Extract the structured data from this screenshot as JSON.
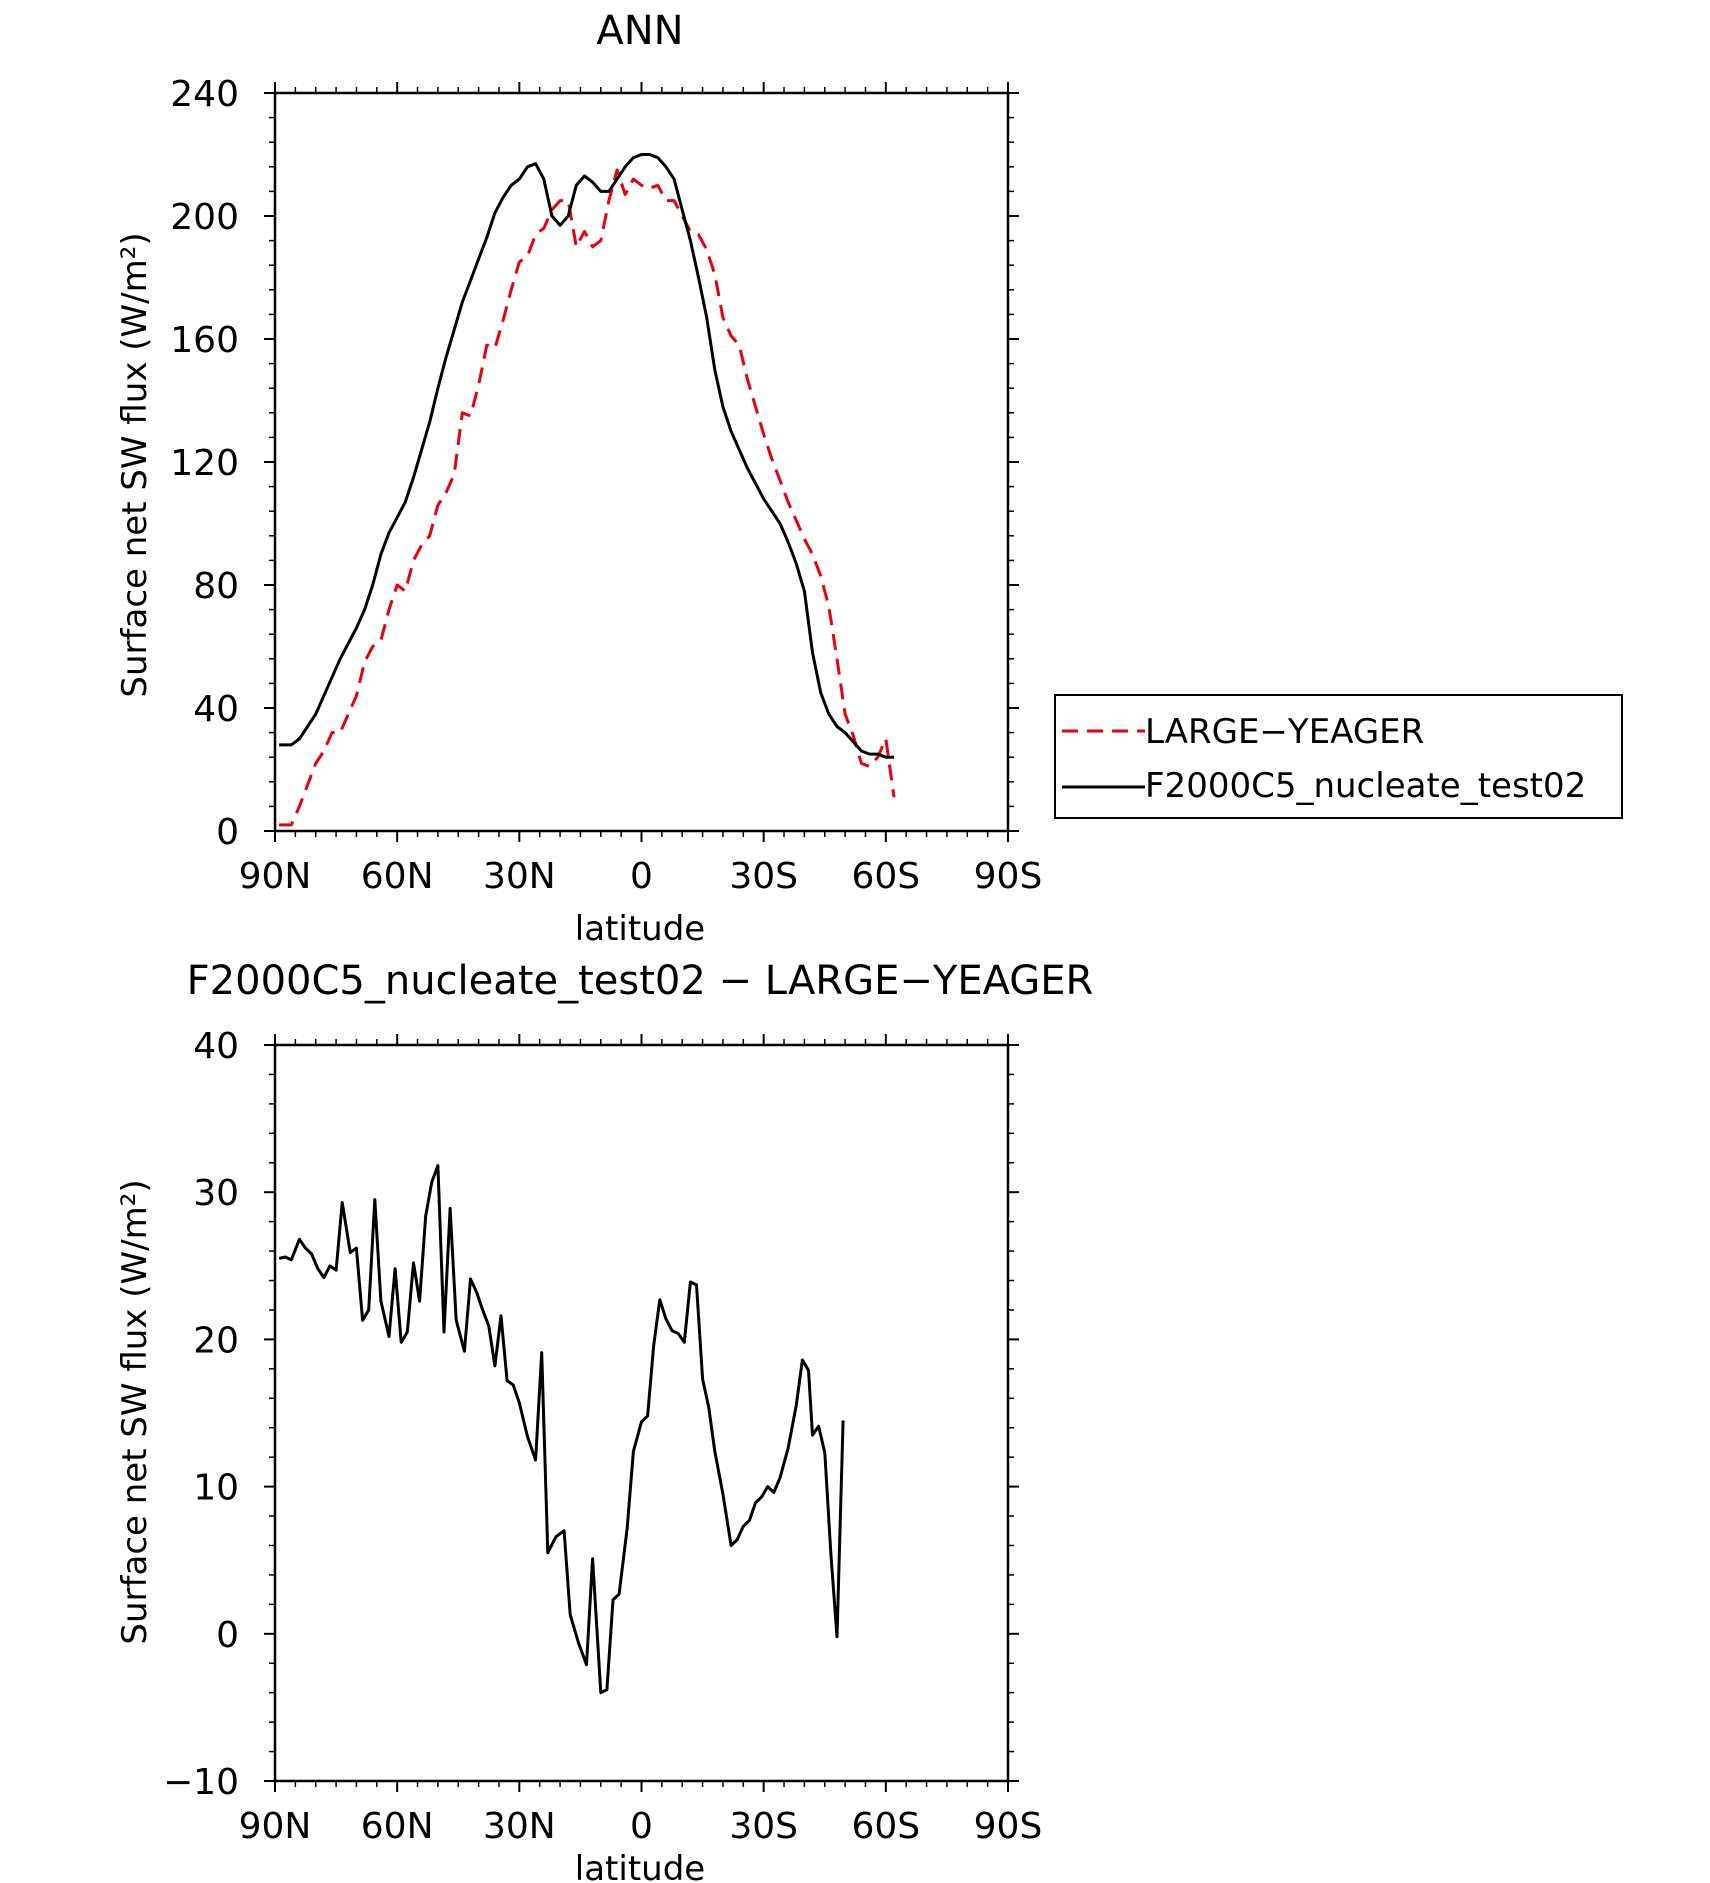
{
  "chart_data": [
    {
      "type": "line",
      "title": "ANN",
      "xlabel": "latitude",
      "ylabel": "Surface net SW flux (W/m²)",
      "xlim": [
        90,
        -90
      ],
      "ylim": [
        0,
        240
      ],
      "x_ticks": [
        90,
        60,
        30,
        0,
        -30,
        -60,
        -90
      ],
      "x_tick_labels": [
        "90N",
        "60N",
        "30N",
        "0",
        "30S",
        "60S",
        "90S"
      ],
      "y_ticks": [
        0,
        40,
        80,
        120,
        160,
        200,
        240
      ],
      "y_tick_labels": [
        "0",
        "40",
        "80",
        "120",
        "160",
        "200",
        "240"
      ],
      "grid": false,
      "legend_position": "right",
      "series": [
        {
          "name": "LARGE-YEAGER",
          "color": "#e8000b",
          "dash": "dashed",
          "points": [
            [
              89,
              2
            ],
            [
              86,
              2
            ],
            [
              84,
              8
            ],
            [
              82,
              15
            ],
            [
              80,
              22
            ],
            [
              78,
              26
            ],
            [
              76,
              32
            ],
            [
              74,
              32
            ],
            [
              72,
              38
            ],
            [
              70,
              44
            ],
            [
              68,
              55
            ],
            [
              66,
              60
            ],
            [
              64,
              62
            ],
            [
              62,
              72
            ],
            [
              60,
              80
            ],
            [
              58,
              78
            ],
            [
              56,
              88
            ],
            [
              54,
              93
            ],
            [
              52,
              96
            ],
            [
              50,
              106
            ],
            [
              48,
              110
            ],
            [
              46,
              116
            ],
            [
              44,
              136
            ],
            [
              42,
              135
            ],
            [
              40,
              145
            ],
            [
              38,
              158
            ],
            [
              36,
              157
            ],
            [
              34,
              166
            ],
            [
              32,
              176
            ],
            [
              30,
              185
            ],
            [
              28,
              187
            ],
            [
              26,
              194
            ],
            [
              24,
              196
            ],
            [
              22,
              202
            ],
            [
              20,
              205
            ],
            [
              18,
              205
            ],
            [
              16,
              190
            ],
            [
              14,
              195
            ],
            [
              12,
              190
            ],
            [
              10,
              192
            ],
            [
              8,
              205
            ],
            [
              6,
              215
            ],
            [
              4,
              207
            ],
            [
              2,
              212
            ],
            [
              0,
              210
            ],
            [
              -2,
              209
            ],
            [
              -4,
              210
            ],
            [
              -6,
              205
            ],
            [
              -8,
              205
            ],
            [
              -10,
              200
            ],
            [
              -12,
              195
            ],
            [
              -14,
              194
            ],
            [
              -16,
              189
            ],
            [
              -18,
              181
            ],
            [
              -20,
              167
            ],
            [
              -22,
              161
            ],
            [
              -24,
              158
            ],
            [
              -26,
              147
            ],
            [
              -28,
              138
            ],
            [
              -30,
              129
            ],
            [
              -32,
              121
            ],
            [
              -34,
              114
            ],
            [
              -36,
              107
            ],
            [
              -38,
              101
            ],
            [
              -40,
              95
            ],
            [
              -42,
              90
            ],
            [
              -44,
              83
            ],
            [
              -46,
              73
            ],
            [
              -48,
              56
            ],
            [
              -50,
              38
            ],
            [
              -52,
              31
            ],
            [
              -54,
              22
            ],
            [
              -56,
              21
            ],
            [
              -58,
              24
            ],
            [
              -60,
              30
            ],
            [
              -62,
              11
            ]
          ]
        },
        {
          "name": "F2000C5_nucleate_test02",
          "color": "#000000",
          "dash": "solid",
          "points": [
            [
              89,
              28
            ],
            [
              86,
              28
            ],
            [
              84,
              30
            ],
            [
              82,
              34
            ],
            [
              80,
              38
            ],
            [
              78,
              44
            ],
            [
              76,
              50
            ],
            [
              74,
              56
            ],
            [
              72,
              61
            ],
            [
              70,
              66
            ],
            [
              68,
              72
            ],
            [
              66,
              80
            ],
            [
              64,
              90
            ],
            [
              62,
              97
            ],
            [
              60,
              102
            ],
            [
              58,
              107
            ],
            [
              56,
              115
            ],
            [
              54,
              124
            ],
            [
              52,
              133
            ],
            [
              50,
              144
            ],
            [
              48,
              154
            ],
            [
              46,
              163
            ],
            [
              44,
              172
            ],
            [
              42,
              179
            ],
            [
              40,
              186
            ],
            [
              38,
              193
            ],
            [
              36,
              201
            ],
            [
              34,
              206
            ],
            [
              32,
              210
            ],
            [
              30,
              212
            ],
            [
              28,
              216
            ],
            [
              26,
              217
            ],
            [
              24,
              212
            ],
            [
              22,
              200
            ],
            [
              20,
              197
            ],
            [
              18,
              200
            ],
            [
              16,
              210
            ],
            [
              14,
              213
            ],
            [
              12,
              211
            ],
            [
              10,
              208
            ],
            [
              8,
              208
            ],
            [
              6,
              212
            ],
            [
              4,
              216
            ],
            [
              2,
              219
            ],
            [
              0,
              220
            ],
            [
              -2,
              220
            ],
            [
              -4,
              219
            ],
            [
              -6,
              216
            ],
            [
              -8,
              212
            ],
            [
              -10,
              202
            ],
            [
              -12,
              192
            ],
            [
              -14,
              180
            ],
            [
              -16,
              167
            ],
            [
              -18,
              150
            ],
            [
              -20,
              138
            ],
            [
              -22,
              130
            ],
            [
              -24,
              124
            ],
            [
              -26,
              118
            ],
            [
              -28,
              113
            ],
            [
              -30,
              108
            ],
            [
              -32,
              104
            ],
            [
              -34,
              100
            ],
            [
              -36,
              94
            ],
            [
              -38,
              87
            ],
            [
              -40,
              78
            ],
            [
              -42,
              58
            ],
            [
              -44,
              45
            ],
            [
              -46,
              38
            ],
            [
              -48,
              34
            ],
            [
              -50,
              32
            ],
            [
              -52,
              29
            ],
            [
              -54,
              26
            ],
            [
              -56,
              25
            ],
            [
              -58,
              25
            ],
            [
              -60,
              24
            ],
            [
              -62,
              24
            ]
          ]
        }
      ]
    },
    {
      "type": "line",
      "title": "F2000C5_nucleate_test02 − LARGE−YEAGER",
      "xlabel": "latitude",
      "ylabel": "Surface net SW flux (W/m²)",
      "xlim": [
        90,
        -90
      ],
      "ylim": [
        -10,
        40
      ],
      "x_ticks": [
        90,
        60,
        30,
        0,
        -30,
        -60,
        -90
      ],
      "x_tick_labels": [
        "90N",
        "60N",
        "30N",
        "0",
        "30S",
        "60S",
        "90S"
      ],
      "y_ticks": [
        -10,
        0,
        10,
        20,
        30,
        40
      ],
      "y_tick_labels": [
        "−10",
        "0",
        "10",
        "20",
        "30",
        "40"
      ],
      "grid": false,
      "series": [
        {
          "color": "#000000",
          "dash": "solid",
          "points": [
            [
              89,
              25.5
            ],
            [
              87.5,
              25.6
            ],
            [
              86,
              25.4
            ],
            [
              84,
              26.8
            ],
            [
              82.5,
              26.2
            ],
            [
              81,
              25.8
            ],
            [
              79.5,
              24.8
            ],
            [
              78,
              24.2
            ],
            [
              76.5,
              25.0
            ],
            [
              75,
              24.7
            ],
            [
              73.5,
              29.3
            ],
            [
              71.5,
              25.9
            ],
            [
              70,
              26.2
            ],
            [
              68.5,
              21.3
            ],
            [
              67,
              22.0
            ],
            [
              65.5,
              29.5
            ],
            [
              64,
              22.6
            ],
            [
              62,
              20.2
            ],
            [
              60.5,
              24.8
            ],
            [
              59,
              19.8
            ],
            [
              57.5,
              20.5
            ],
            [
              56,
              25.2
            ],
            [
              54.5,
              22.6
            ],
            [
              53,
              28.4
            ],
            [
              51.5,
              30.7
            ],
            [
              50,
              31.8
            ],
            [
              48.5,
              20.5
            ],
            [
              47,
              28.9
            ],
            [
              45.5,
              21.3
            ],
            [
              43.5,
              19.2
            ],
            [
              42,
              24.1
            ],
            [
              40.5,
              23.2
            ],
            [
              39,
              22.0
            ],
            [
              37.5,
              20.9
            ],
            [
              36,
              18.2
            ],
            [
              34.5,
              21.6
            ],
            [
              33,
              17.2
            ],
            [
              31.5,
              16.9
            ],
            [
              30,
              15.7
            ],
            [
              28,
              13.4
            ],
            [
              26,
              11.8
            ],
            [
              24.5,
              19.1
            ],
            [
              23,
              5.5
            ],
            [
              21,
              6.6
            ],
            [
              19,
              7.0
            ],
            [
              17.5,
              1.3
            ],
            [
              15.5,
              -0.6
            ],
            [
              13.5,
              -2.1
            ],
            [
              12,
              5.1
            ],
            [
              10,
              -4.0
            ],
            [
              8.5,
              -3.8
            ],
            [
              7,
              2.3
            ],
            [
              5.5,
              2.7
            ],
            [
              3.5,
              7.2
            ],
            [
              2,
              12.4
            ],
            [
              0,
              14.4
            ],
            [
              -1.5,
              14.8
            ],
            [
              -3,
              19.6
            ],
            [
              -4.5,
              22.7
            ],
            [
              -6,
              21.4
            ],
            [
              -7.5,
              20.6
            ],
            [
              -9,
              20.4
            ],
            [
              -10.5,
              19.8
            ],
            [
              -12,
              23.9
            ],
            [
              -13.5,
              23.7
            ],
            [
              -15,
              17.3
            ],
            [
              -16.5,
              15.4
            ],
            [
              -18,
              12.4
            ],
            [
              -20,
              9.5
            ],
            [
              -22,
              6.0
            ],
            [
              -23.5,
              6.4
            ],
            [
              -25,
              7.3
            ],
            [
              -26.5,
              7.7
            ],
            [
              -28,
              8.9
            ],
            [
              -29.5,
              9.3
            ],
            [
              -31,
              10.0
            ],
            [
              -32.5,
              9.6
            ],
            [
              -34,
              10.6
            ],
            [
              -36,
              12.6
            ],
            [
              -38,
              15.5
            ],
            [
              -39.5,
              18.6
            ],
            [
              -41,
              17.9
            ],
            [
              -42,
              13.5
            ],
            [
              -43.5,
              14.1
            ],
            [
              -45,
              12.3
            ],
            [
              -46.5,
              5.4
            ],
            [
              -48,
              -0.2
            ],
            [
              -49.5,
              14.5
            ]
          ]
        }
      ]
    }
  ],
  "legend": {
    "items": [
      {
        "label": "LARGE−YEAGER",
        "color": "#e8000b",
        "dash": "dashed"
      },
      {
        "label": "F2000C5_nucleate_test02",
        "color": "#000000",
        "dash": "solid"
      }
    ]
  }
}
